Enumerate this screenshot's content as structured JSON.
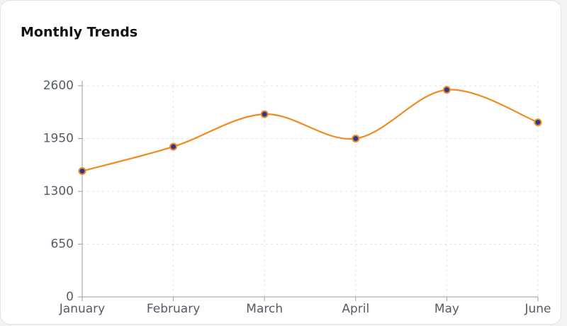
{
  "chart_data": {
    "type": "line",
    "title": "Monthly Trends",
    "categories": [
      "January",
      "February",
      "March",
      "April",
      "May",
      "June"
    ],
    "series": [
      {
        "name": "Monthly Trends",
        "color": "#f28a1e",
        "marker_color": "#2b3a9a",
        "values": [
          1550,
          1850,
          2250,
          1950,
          2550,
          2150
        ]
      }
    ],
    "ylim": [
      0,
      2600
    ],
    "yticks": [
      0,
      650,
      1300,
      1950,
      2600
    ],
    "grid": true,
    "smooth": true
  }
}
